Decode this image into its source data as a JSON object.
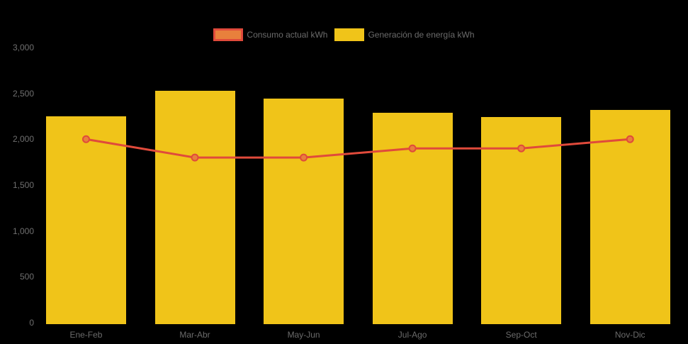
{
  "background_color": "#000000",
  "legend": {
    "position": "top",
    "items": [
      {
        "label": "Consumo actual kWh",
        "swatch_fill": "#E8803C",
        "swatch_border": "#E04A3B",
        "series_type": "line"
      },
      {
        "label": "Generación de energía kWh",
        "swatch_fill": "#F0C419",
        "swatch_border": "#F0C419",
        "series_type": "bar"
      }
    ]
  },
  "chart_data": {
    "type": "bar",
    "title": "",
    "xlabel": "",
    "ylabel": "",
    "categories": [
      "Ene-Feb",
      "Mar-Abr",
      "May-Jun",
      "Jul-Ago",
      "Sep-Oct",
      "Nov-Dic"
    ],
    "series": [
      {
        "name": "Consumo actual kWh",
        "type": "line",
        "values": [
          2000,
          1800,
          1800,
          1900,
          1900,
          2000
        ],
        "color": "#E04A3B",
        "point_fill": "#E8803C",
        "line_width": 3,
        "point_radius": 4.5
      },
      {
        "name": "Generación de energía kWh",
        "type": "bar",
        "values": [
          2250,
          2530,
          2440,
          2290,
          2240,
          2320
        ],
        "color": "#F0C419"
      }
    ],
    "ylim": [
      0,
      3000
    ],
    "yticks": [
      0,
      500,
      1000,
      1500,
      2000,
      2500,
      3000
    ],
    "ytick_labels": [
      "0",
      "500",
      "1,000",
      "1,500",
      "2,000",
      "2,500",
      "3,000"
    ],
    "grid": false,
    "legend_position": "top",
    "axis_text_color": "#6F6F6F"
  }
}
